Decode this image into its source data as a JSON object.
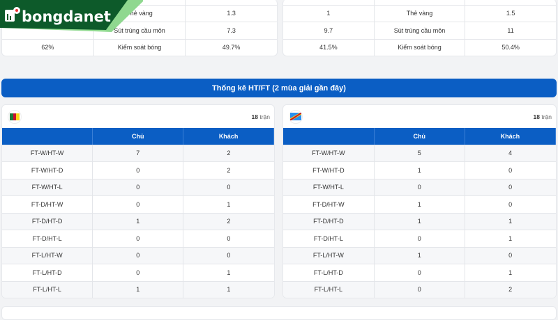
{
  "brand": {
    "name": "bongdanet"
  },
  "top_stats": {
    "left": {
      "rows": [
        {
          "home": "",
          "label": "Thẻ vàng",
          "away": "1.3"
        },
        {
          "home": "",
          "label": "Sút trúng cầu môn",
          "away": "7.3"
        },
        {
          "home": "62%",
          "label": "Kiểm soát bóng",
          "away": "49.7%"
        }
      ]
    },
    "right": {
      "rows": [
        {
          "home": "1",
          "label": "Thẻ vàng",
          "away": "1.5"
        },
        {
          "home": "9.7",
          "label": "Sút trúng cầu môn",
          "away": "11"
        },
        {
          "home": "41.5%",
          "label": "Kiểm soát bóng",
          "away": "50.4%"
        }
      ]
    }
  },
  "htft": {
    "title": "Thống kê HT/FT (2 mùa giải gần đây)",
    "columns": [
      "",
      "Chủ",
      "Khách"
    ],
    "teams": [
      {
        "flag": "cameroon-flag",
        "count": "18",
        "count_unit": "trận",
        "rows": [
          [
            "FT-W/HT-W",
            "7",
            "2"
          ],
          [
            "FT-W/HT-D",
            "0",
            "2"
          ],
          [
            "FT-W/HT-L",
            "0",
            "0"
          ],
          [
            "FT-D/HT-W",
            "0",
            "1"
          ],
          [
            "FT-D/HT-D",
            "1",
            "2"
          ],
          [
            "FT-D/HT-L",
            "0",
            "0"
          ],
          [
            "FT-L/HT-W",
            "0",
            "0"
          ],
          [
            "FT-L/HT-D",
            "0",
            "1"
          ],
          [
            "FT-L/HT-L",
            "1",
            "1"
          ]
        ]
      },
      {
        "flag": "dr-congo-flag",
        "count": "18",
        "count_unit": "trận",
        "rows": [
          [
            "FT-W/HT-W",
            "5",
            "4"
          ],
          [
            "FT-W/HT-D",
            "1",
            "0"
          ],
          [
            "FT-W/HT-L",
            "0",
            "0"
          ],
          [
            "FT-D/HT-W",
            "1",
            "0"
          ],
          [
            "FT-D/HT-D",
            "1",
            "1"
          ],
          [
            "FT-D/HT-L",
            "0",
            "1"
          ],
          [
            "FT-L/HT-W",
            "1",
            "0"
          ],
          [
            "FT-L/HT-D",
            "0",
            "1"
          ],
          [
            "FT-L/HT-L",
            "0",
            "2"
          ]
        ]
      }
    ]
  },
  "colors": {
    "primary": "#0b5ec4",
    "logo_green": "#0d5a2a"
  }
}
